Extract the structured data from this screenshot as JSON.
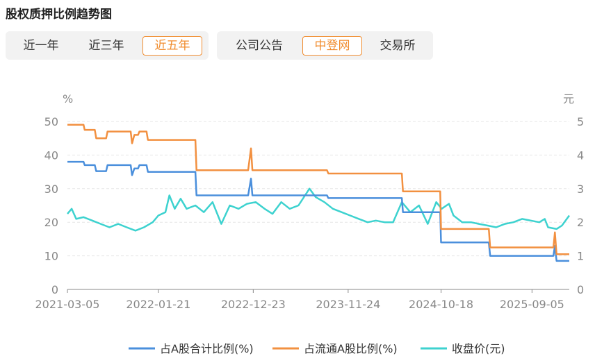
{
  "title": "股权质押比例趋势图",
  "range_tabs": [
    {
      "label": "近一年",
      "active": false
    },
    {
      "label": "近三年",
      "active": false
    },
    {
      "label": "近五年",
      "active": true
    }
  ],
  "source_tabs": [
    {
      "label": "公司公告",
      "active": false
    },
    {
      "label": "中登网",
      "active": true
    },
    {
      "label": "交易所",
      "active": false
    }
  ],
  "colors": {
    "accent": "#f08c2e",
    "series1": "#4a8fdc",
    "series2": "#f29040",
    "series3": "#3dd2cf"
  },
  "chart_data": {
    "type": "line",
    "left_unit": "%",
    "right_unit": "元",
    "y_left_ticks": [
      "0",
      "10",
      "20",
      "30",
      "40",
      "50"
    ],
    "y_right_ticks": [
      "0",
      "1",
      "2",
      "3",
      "4",
      "5"
    ],
    "ylim_left": [
      0,
      50
    ],
    "ylim_right": [
      0,
      5
    ],
    "x_ticks": [
      "2021-03-05",
      "2022-01-21",
      "2022-12-23",
      "2023-11-24",
      "2024-10-18",
      "2025-09-05"
    ],
    "xlim": [
      "2021-03-05",
      "2026-01-15"
    ],
    "grid": "horizontal",
    "legend_position": "bottom",
    "series": [
      {
        "name": "占A股合计比例(%)",
        "axis": "left",
        "step": true,
        "points": [
          [
            "2021-03-05",
            38.0
          ],
          [
            "2021-05-01",
            38.0
          ],
          [
            "2021-05-05",
            37.0
          ],
          [
            "2021-06-10",
            37.0
          ],
          [
            "2021-06-15",
            35.2
          ],
          [
            "2021-07-20",
            35.2
          ],
          [
            "2021-07-25",
            37.0
          ],
          [
            "2021-10-15",
            37.0
          ],
          [
            "2021-10-20",
            34.0
          ],
          [
            "2021-10-28",
            36.0
          ],
          [
            "2021-11-10",
            36.0
          ],
          [
            "2021-11-15",
            37.0
          ],
          [
            "2021-12-10",
            37.0
          ],
          [
            "2021-12-15",
            35.0
          ],
          [
            "2022-06-01",
            35.0
          ],
          [
            "2022-06-05",
            28.0
          ],
          [
            "2022-12-05",
            28.0
          ],
          [
            "2022-12-15",
            33.0
          ],
          [
            "2022-12-20",
            28.0
          ],
          [
            "2023-09-10",
            28.0
          ],
          [
            "2023-09-15",
            27.2
          ],
          [
            "2024-06-01",
            27.2
          ],
          [
            "2024-06-05",
            23.0
          ],
          [
            "2024-10-15",
            23.0
          ],
          [
            "2024-10-18",
            14.0
          ],
          [
            "2025-04-05",
            14.0
          ],
          [
            "2025-04-10",
            10.0
          ],
          [
            "2025-11-20",
            10.0
          ],
          [
            "2025-11-25",
            13.0
          ],
          [
            "2025-12-01",
            8.5
          ],
          [
            "2026-01-15",
            8.5
          ]
        ]
      },
      {
        "name": "占流通A股比例(%)",
        "axis": "left",
        "step": true,
        "points": [
          [
            "2021-03-05",
            49.0
          ],
          [
            "2021-05-01",
            49.0
          ],
          [
            "2021-05-05",
            47.5
          ],
          [
            "2021-06-10",
            47.5
          ],
          [
            "2021-06-15",
            45.0
          ],
          [
            "2021-07-20",
            45.0
          ],
          [
            "2021-07-25",
            47.0
          ],
          [
            "2021-10-15",
            47.0
          ],
          [
            "2021-10-20",
            43.5
          ],
          [
            "2021-10-28",
            46.0
          ],
          [
            "2021-11-10",
            46.0
          ],
          [
            "2021-11-15",
            47.0
          ],
          [
            "2021-12-10",
            47.0
          ],
          [
            "2021-12-15",
            44.5
          ],
          [
            "2022-06-01",
            44.5
          ],
          [
            "2022-06-05",
            35.5
          ],
          [
            "2022-12-05",
            35.5
          ],
          [
            "2022-12-15",
            42.0
          ],
          [
            "2022-12-20",
            35.5
          ],
          [
            "2023-09-10",
            35.5
          ],
          [
            "2023-09-15",
            34.5
          ],
          [
            "2024-06-01",
            34.5
          ],
          [
            "2024-06-05",
            29.2
          ],
          [
            "2024-10-15",
            29.2
          ],
          [
            "2024-10-18",
            18.0
          ],
          [
            "2025-04-05",
            18.0
          ],
          [
            "2025-04-10",
            12.5
          ],
          [
            "2025-11-20",
            12.5
          ],
          [
            "2025-11-25",
            17.0
          ],
          [
            "2025-12-01",
            10.5
          ],
          [
            "2026-01-15",
            10.5
          ]
        ]
      },
      {
        "name": "收盘价(元)",
        "axis": "right",
        "step": false,
        "points": [
          [
            "2021-03-05",
            2.25
          ],
          [
            "2021-03-20",
            2.4
          ],
          [
            "2021-04-05",
            2.1
          ],
          [
            "2021-05-01",
            2.15
          ],
          [
            "2021-06-01",
            2.05
          ],
          [
            "2021-07-01",
            1.95
          ],
          [
            "2021-08-01",
            1.85
          ],
          [
            "2021-09-01",
            1.95
          ],
          [
            "2021-10-01",
            1.85
          ],
          [
            "2021-11-01",
            1.75
          ],
          [
            "2021-12-01",
            1.85
          ],
          [
            "2022-01-01",
            2.0
          ],
          [
            "2022-01-21",
            2.2
          ],
          [
            "2022-02-15",
            2.3
          ],
          [
            "2022-03-01",
            2.8
          ],
          [
            "2022-03-20",
            2.4
          ],
          [
            "2022-04-10",
            2.7
          ],
          [
            "2022-05-01",
            2.4
          ],
          [
            "2022-06-01",
            2.5
          ],
          [
            "2022-07-01",
            2.3
          ],
          [
            "2022-08-01",
            2.6
          ],
          [
            "2022-09-01",
            1.95
          ],
          [
            "2022-10-01",
            2.5
          ],
          [
            "2022-11-01",
            2.4
          ],
          [
            "2022-12-01",
            2.55
          ],
          [
            "2023-01-01",
            2.6
          ],
          [
            "2023-02-01",
            2.4
          ],
          [
            "2023-03-01",
            2.25
          ],
          [
            "2023-04-01",
            2.6
          ],
          [
            "2023-05-01",
            2.4
          ],
          [
            "2023-06-01",
            2.5
          ],
          [
            "2023-07-10",
            3.0
          ],
          [
            "2023-08-01",
            2.75
          ],
          [
            "2023-09-01",
            2.6
          ],
          [
            "2023-10-01",
            2.4
          ],
          [
            "2023-11-01",
            2.3
          ],
          [
            "2023-12-01",
            2.2
          ],
          [
            "2024-01-01",
            2.1
          ],
          [
            "2024-02-01",
            2.0
          ],
          [
            "2024-03-01",
            2.05
          ],
          [
            "2024-04-01",
            2.0
          ],
          [
            "2024-05-01",
            2.0
          ],
          [
            "2024-06-01",
            2.6
          ],
          [
            "2024-07-01",
            2.3
          ],
          [
            "2024-08-01",
            2.5
          ],
          [
            "2024-09-01",
            1.95
          ],
          [
            "2024-10-01",
            2.6
          ],
          [
            "2024-10-20",
            2.4
          ],
          [
            "2024-11-15",
            2.55
          ],
          [
            "2024-12-01",
            2.2
          ],
          [
            "2025-01-01",
            2.0
          ],
          [
            "2025-02-01",
            2.0
          ],
          [
            "2025-03-01",
            1.95
          ],
          [
            "2025-04-01",
            1.9
          ],
          [
            "2025-05-01",
            1.85
          ],
          [
            "2025-06-01",
            1.95
          ],
          [
            "2025-07-01",
            2.0
          ],
          [
            "2025-08-01",
            2.1
          ],
          [
            "2025-09-01",
            2.05
          ],
          [
            "2025-10-01",
            2.0
          ],
          [
            "2025-10-20",
            2.1
          ],
          [
            "2025-11-01",
            1.85
          ],
          [
            "2025-12-01",
            1.8
          ],
          [
            "2025-12-20",
            1.9
          ],
          [
            "2026-01-15",
            2.2
          ]
        ]
      }
    ]
  }
}
